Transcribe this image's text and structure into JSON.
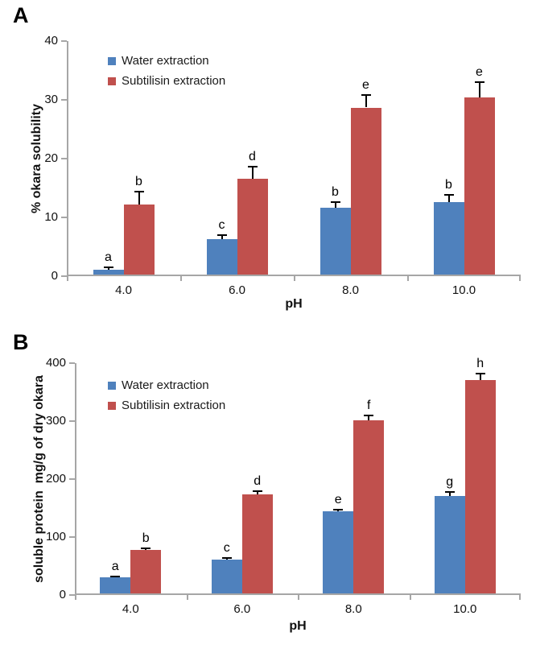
{
  "figure": {
    "background": "#ffffff",
    "axis_color": "#a6a6a6",
    "error_bar_color": "#000000",
    "series_colors": {
      "water": "#4f81bd",
      "subtilisin": "#c0504d"
    }
  },
  "chart_data": [
    {
      "type": "bar",
      "panel_label": "A",
      "title": "",
      "categories": [
        "4.0",
        "6.0",
        "8.0",
        "10.0"
      ],
      "xlabel": "pH",
      "ylabel": "% okara solubility",
      "ylim": [
        0,
        40
      ],
      "yticks": [
        0,
        10,
        20,
        30,
        40
      ],
      "grid": false,
      "legend_position": "top-left-inside",
      "legend": [
        "Water extraction",
        "Subtilisin extraction"
      ],
      "series": [
        {
          "name": "Water extraction",
          "color": "#4f81bd",
          "values": [
            1.1,
            6.3,
            11.6,
            12.6
          ],
          "errors": [
            0.5,
            0.8,
            1.2,
            1.4
          ],
          "letters": [
            "a",
            "c",
            "b",
            "b"
          ]
        },
        {
          "name": "Subtilisin extraction",
          "color": "#c0504d",
          "values": [
            12.2,
            16.6,
            28.7,
            30.4
          ],
          "errors": [
            2.3,
            2.1,
            2.3,
            2.8
          ],
          "letters": [
            "b",
            "d",
            "e",
            "e"
          ]
        }
      ]
    },
    {
      "type": "bar",
      "panel_label": "B",
      "title": "",
      "categories": [
        "4.0",
        "6.0",
        "8.0",
        "10.0"
      ],
      "xlabel": "pH",
      "ylabel": "soluble protein  mg/g of dry okara",
      "ylim": [
        0,
        400
      ],
      "yticks": [
        0,
        100,
        200,
        300,
        400
      ],
      "grid": false,
      "legend_position": "top-left-inside",
      "legend": [
        "Water extraction",
        "Subtilisin extraction"
      ],
      "series": [
        {
          "name": "Water extraction",
          "color": "#4f81bd",
          "values": [
            31,
            61,
            144,
            171
          ],
          "errors": [
            3,
            4,
            5,
            8
          ],
          "letters": [
            "a",
            "c",
            "e",
            "g"
          ]
        },
        {
          "name": "Subtilisin extraction",
          "color": "#c0504d",
          "values": [
            78,
            174,
            302,
            371
          ],
          "errors": [
            4,
            7,
            9,
            12
          ],
          "letters": [
            "b",
            "d",
            "f",
            "h"
          ]
        }
      ]
    }
  ]
}
